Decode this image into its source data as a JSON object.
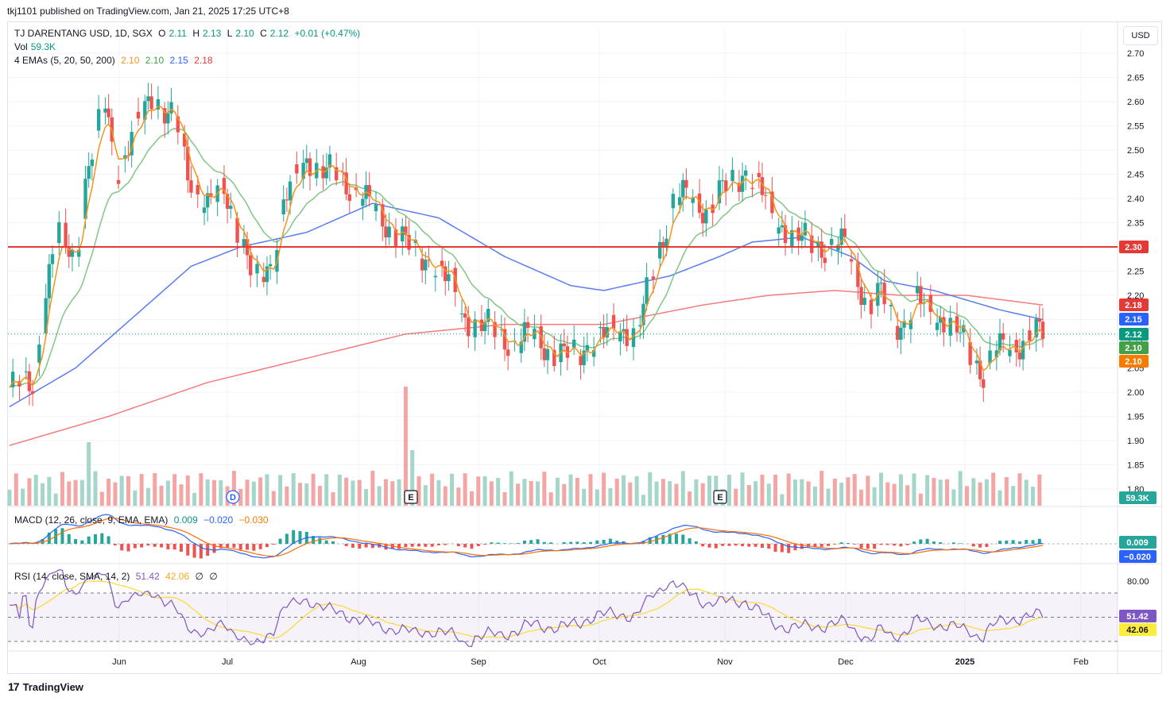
{
  "publisher": "tkj1101 published on TradingView.com, Jan 21, 2025 17:25 UTC+8",
  "legend": {
    "symbol": "TJ DARENTANG USD, 1D, SGX",
    "o_label": "O",
    "o": "2.11",
    "h_label": "H",
    "h": "2.13",
    "l_label": "L",
    "l": "2.10",
    "c_label": "C",
    "c": "2.12",
    "change": "+0.01 (+0.47%)",
    "vol_label": "Vol",
    "vol": "59.3K",
    "ema_label": "4 EMAs (5, 20, 50, 200)",
    "ema5": "2.10",
    "ema20": "2.10",
    "ema50": "2.15",
    "ema200": "2.18"
  },
  "macd_legend": {
    "label": "MACD (12, 26, close, 9, EMA, EMA)",
    "v1": "0.009",
    "v2": "−0.020",
    "v3": "−0.030"
  },
  "rsi_legend": {
    "label": "RSI (14, close, SMA, 14, 2)",
    "v1": "51.42",
    "v2": "42.06",
    "v3": "∅",
    "v4": "∅"
  },
  "currency": "USD",
  "footer": "TradingView",
  "colors": {
    "up": "#26a69a",
    "down": "#ef5350",
    "ema5": "#f7931a",
    "ema20": "#81c784",
    "ema50": "#5b7cf0",
    "ema200": "#f47c7c",
    "hline": "#e53935",
    "rsi": "#7e57c2",
    "rsi_ma": "#fdd835"
  },
  "chart_data": {
    "type": "candlestick",
    "title": "TJ DARENTANG USD, 1D, SGX",
    "price_axis": {
      "ticks": [
        "2.70",
        "2.65",
        "2.60",
        "2.55",
        "2.50",
        "2.45",
        "2.40",
        "2.35",
        "2.30",
        "2.25",
        "2.20",
        "2.15",
        "2.10",
        "2.05",
        "2.00",
        "1.95",
        "1.90",
        "1.85",
        "1.80"
      ],
      "range": [
        1.78,
        2.72
      ]
    },
    "time_axis": [
      "Jun",
      "Jul",
      "Aug",
      "Sep",
      "Oct",
      "Nov",
      "Dec",
      "2025",
      "Feb"
    ],
    "horizontal_line": 2.3,
    "price_labels": [
      {
        "text": "2.30",
        "value": 2.3,
        "color": "#e53935"
      },
      {
        "text": "2.18",
        "value": 2.18,
        "color": "#e53935"
      },
      {
        "text": "2.15",
        "value": 2.15,
        "color": "#2962ff"
      },
      {
        "text": "2.12",
        "value": 2.12,
        "color": "#089981"
      },
      {
        "text": "2.10",
        "value": 2.1,
        "color": "#43a047"
      },
      {
        "text": "2.10",
        "value": 2.1,
        "color": "#f57c00"
      }
    ],
    "volume_label": "59.3K",
    "events": [
      {
        "text": "D",
        "month": "Jun-end"
      },
      {
        "text": "E",
        "month": "Aug"
      },
      {
        "text": "E",
        "month": "Nov"
      }
    ],
    "ema_anchor_points": {
      "ema50": [
        [
          0,
          1.97
        ],
        [
          20,
          2.05
        ],
        [
          40,
          2.17
        ],
        [
          55,
          2.26
        ],
        [
          70,
          2.3
        ],
        [
          90,
          2.33
        ],
        [
          110,
          2.39
        ],
        [
          130,
          2.36
        ],
        [
          150,
          2.28
        ],
        [
          170,
          2.22
        ],
        [
          180,
          2.21
        ],
        [
          200,
          2.24
        ],
        [
          215,
          2.28
        ],
        [
          225,
          2.31
        ],
        [
          240,
          2.32
        ],
        [
          255,
          2.28
        ],
        [
          265,
          2.23
        ],
        [
          280,
          2.21
        ],
        [
          300,
          2.17
        ],
        [
          313,
          2.15
        ]
      ],
      "ema200": [
        [
          0,
          1.89
        ],
        [
          30,
          1.95
        ],
        [
          60,
          2.02
        ],
        [
          90,
          2.07
        ],
        [
          120,
          2.12
        ],
        [
          150,
          2.14
        ],
        [
          180,
          2.14
        ],
        [
          210,
          2.18
        ],
        [
          230,
          2.2
        ],
        [
          250,
          2.21
        ],
        [
          270,
          2.2
        ],
        [
          290,
          2.2
        ],
        [
          313,
          2.18
        ]
      ]
    },
    "macd_axis": {
      "labels": [
        "0.009",
        "−0.020"
      ]
    },
    "rsi_axis": {
      "ticks": [
        "80.00"
      ],
      "labels": [
        "51.42",
        "42.06"
      ],
      "band": [
        30,
        70
      ]
    }
  }
}
